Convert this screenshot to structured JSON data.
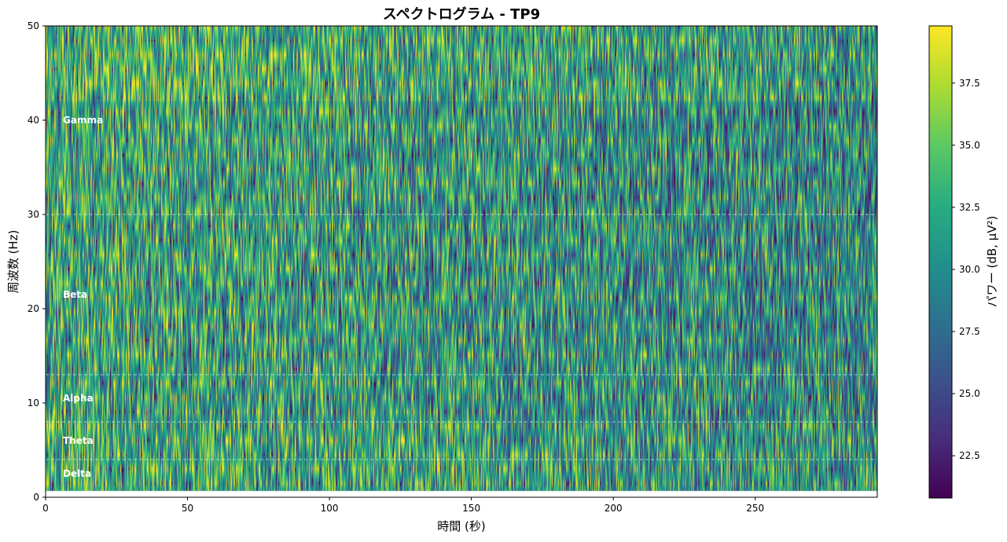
{
  "chart_data": {
    "type": "heatmap",
    "title": "スペクトログラム - TP9",
    "xlabel": "時間 (秒)",
    "ylabel": "周波数 (Hz)",
    "xlim": [
      0,
      293
    ],
    "ylim": [
      0,
      50
    ],
    "xticks": [
      0,
      50,
      100,
      150,
      200,
      250
    ],
    "yticks": [
      0,
      10,
      20,
      30,
      40,
      50
    ],
    "colormap": "viridis",
    "colorbar": {
      "label": "パワー (dB, μV²)",
      "range": [
        20.8,
        39.8
      ],
      "ticks": [
        "22.5",
        "25.0",
        "27.5",
        "30.0",
        "32.5",
        "35.0",
        "37.5"
      ]
    },
    "data_extent_hz": [
      0.7,
      50
    ],
    "band_boundaries_hz": [
      4,
      8,
      13,
      30
    ],
    "bands": [
      {
        "name": "Delta",
        "freq": 2.5
      },
      {
        "name": "Theta",
        "freq": 6
      },
      {
        "name": "Alpha",
        "freq": 10.5
      },
      {
        "name": "Beta",
        "freq": 21.5
      },
      {
        "name": "Gamma",
        "freq": 40
      }
    ],
    "grid": false
  }
}
